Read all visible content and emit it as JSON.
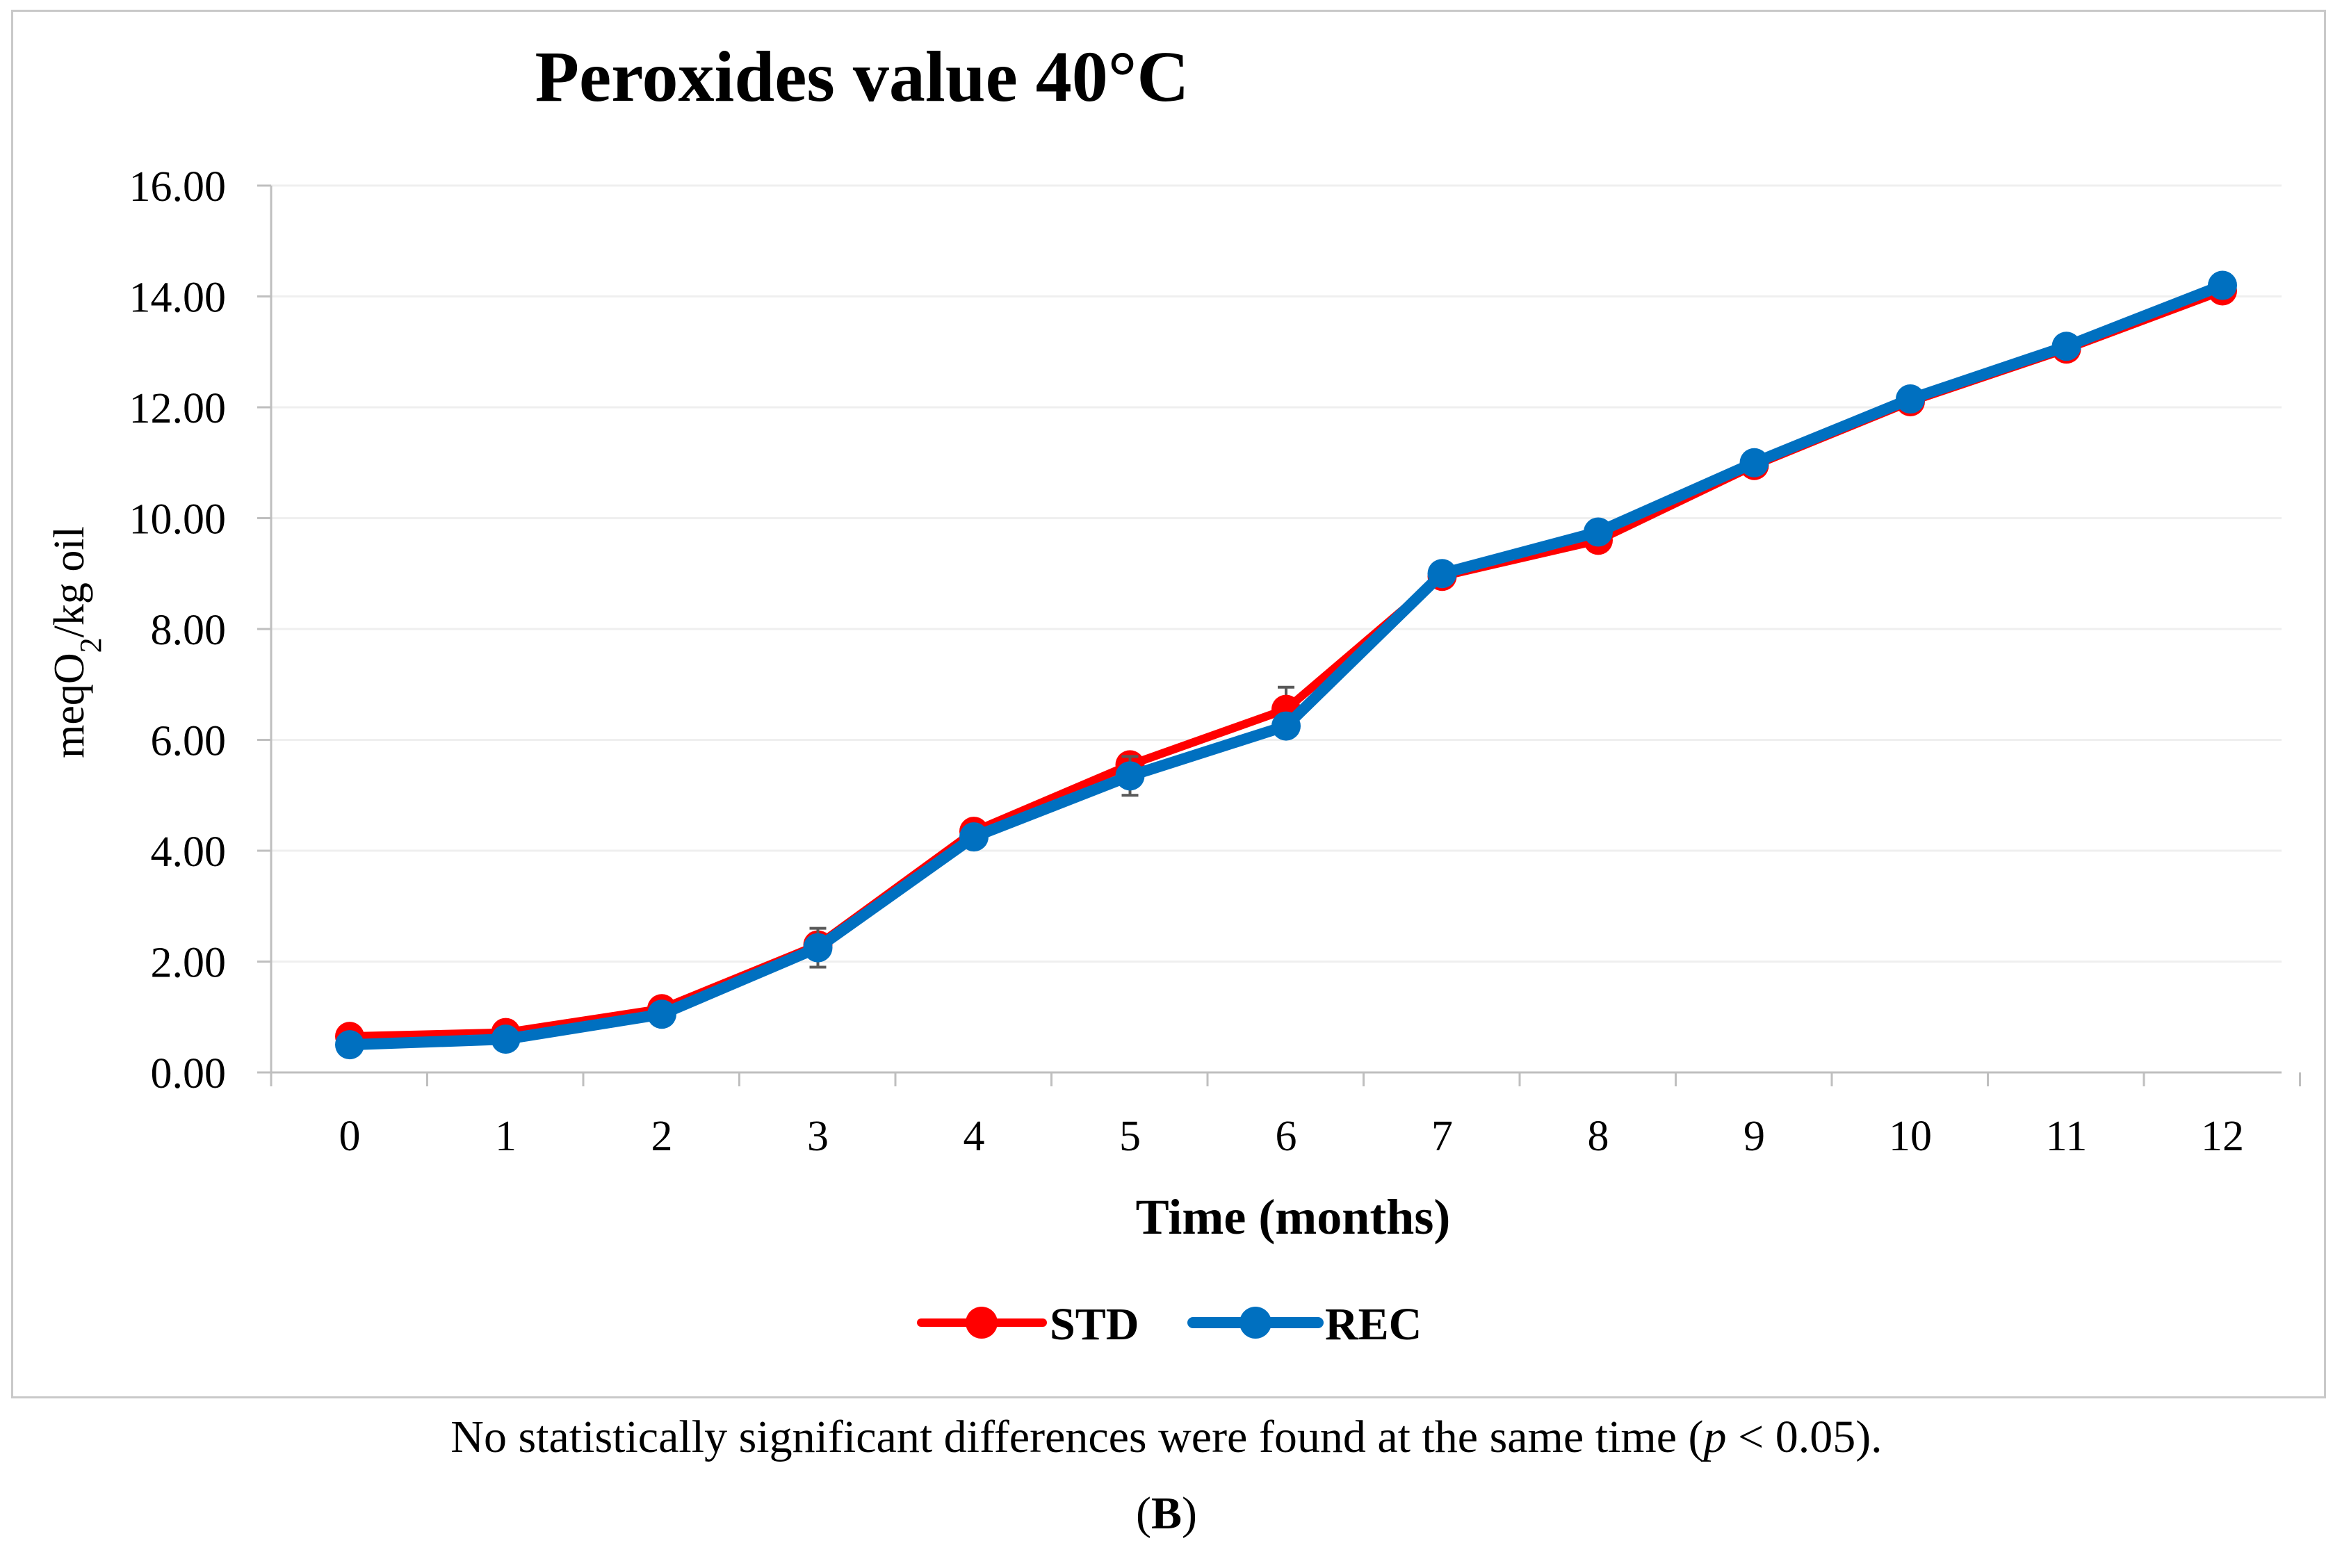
{
  "chart_data": {
    "type": "line",
    "title": "Peroxides value 40°C",
    "xlabel": "Time (months)",
    "ylabel_prefix": "meqO",
    "ylabel_sub": "2",
    "ylabel_suffix": "/kg oil",
    "x": [
      0,
      1,
      2,
      3,
      4,
      5,
      6,
      7,
      8,
      9,
      10,
      11,
      12
    ],
    "x_tick_labels": [
      "0",
      "1",
      "2",
      "3",
      "4",
      "5",
      "6",
      "7",
      "8",
      "9",
      "10",
      "11",
      "12"
    ],
    "ylim": [
      0,
      16
    ],
    "y_tick_values": [
      0,
      2,
      4,
      6,
      8,
      10,
      12,
      14,
      16
    ],
    "y_tick_labels": [
      "0.00",
      "2.00",
      "4.00",
      "6.00",
      "8.00",
      "10.00",
      "12.00",
      "14.00",
      "16.00"
    ],
    "grid": "horizontal",
    "legend_position": "bottom-center",
    "series": [
      {
        "name": "STD",
        "color": "#ff0000",
        "values": [
          0.65,
          0.72,
          1.15,
          2.3,
          4.35,
          5.55,
          6.55,
          8.95,
          9.6,
          10.95,
          12.1,
          13.05,
          14.1
        ],
        "error": [
          0.05,
          0.05,
          0.05,
          0.2,
          0.1,
          0.1,
          0.4,
          0.1,
          0.1,
          0.1,
          0.1,
          0.1,
          0.1
        ]
      },
      {
        "name": "REC",
        "color": "#0070c0",
        "values": [
          0.5,
          0.6,
          1.05,
          2.25,
          4.25,
          5.35,
          6.25,
          9.0,
          9.75,
          11.0,
          12.15,
          13.1,
          14.2
        ],
        "error": [
          0.05,
          0.05,
          0.05,
          0.35,
          0.1,
          0.35,
          0.1,
          0.1,
          0.1,
          0.1,
          0.1,
          0.1,
          0.1
        ]
      }
    ]
  },
  "caption": {
    "note_before": "No statistically significant differences were found at the same time (",
    "note_p": "p",
    "note_after": " < 0.05).",
    "panel_open": "(",
    "panel_letter": "B",
    "panel_close": ")"
  }
}
